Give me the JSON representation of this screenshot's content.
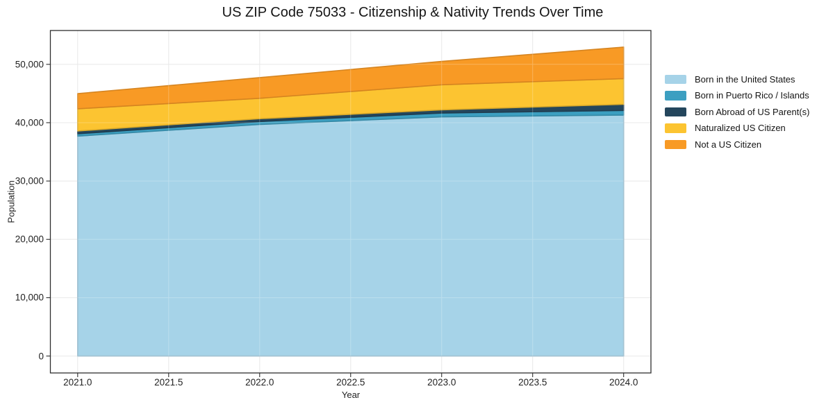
{
  "chart_data": {
    "type": "area",
    "stacked": true,
    "title": "US ZIP Code 75033 - Citizenship & Nativity Trends Over Time",
    "xlabel": "Year",
    "ylabel": "Population",
    "x": [
      2021,
      2022,
      2023,
      2024
    ],
    "series": [
      {
        "name": "Born in the United States",
        "color": "#A6D3E8",
        "values": [
          37700,
          39700,
          41000,
          41300
        ]
      },
      {
        "name": "Born in Puerto Rico / Islands",
        "color": "#3C9FC1",
        "values": [
          400,
          500,
          650,
          800
        ]
      },
      {
        "name": "Born Abroad of US Parent(s)",
        "color": "#24465C",
        "values": [
          480,
          480,
          550,
          1050
        ]
      },
      {
        "name": "Naturalized US Citizen",
        "color": "#FCC431",
        "values": [
          3800,
          3500,
          4300,
          4400
        ]
      },
      {
        "name": "Not a US Citizen",
        "color": "#F89A25",
        "values": [
          2600,
          3550,
          4000,
          5400
        ]
      }
    ],
    "xlim": [
      2020.85,
      2024.15
    ],
    "ylim": [
      -2900,
      55800
    ],
    "xticks": {
      "values": [
        2021.0,
        2021.5,
        2022.0,
        2022.5,
        2023.0,
        2023.5,
        2024.0
      ],
      "labels": [
        "2021.0",
        "2021.5",
        "2022.0",
        "2022.5",
        "2023.0",
        "2023.5",
        "2024.0"
      ]
    },
    "yticks": {
      "values": [
        0,
        10000,
        20000,
        30000,
        40000,
        50000
      ],
      "labels": [
        "0",
        "10,000",
        "20,000",
        "30,000",
        "40,000",
        "50,000"
      ]
    },
    "grid": true,
    "legend_position": "right"
  },
  "colors": {
    "grid": "#e2e2e2",
    "grid_overlay": "#ffffff",
    "spine": "#2e2e2e",
    "text": "#1f1f1f"
  }
}
